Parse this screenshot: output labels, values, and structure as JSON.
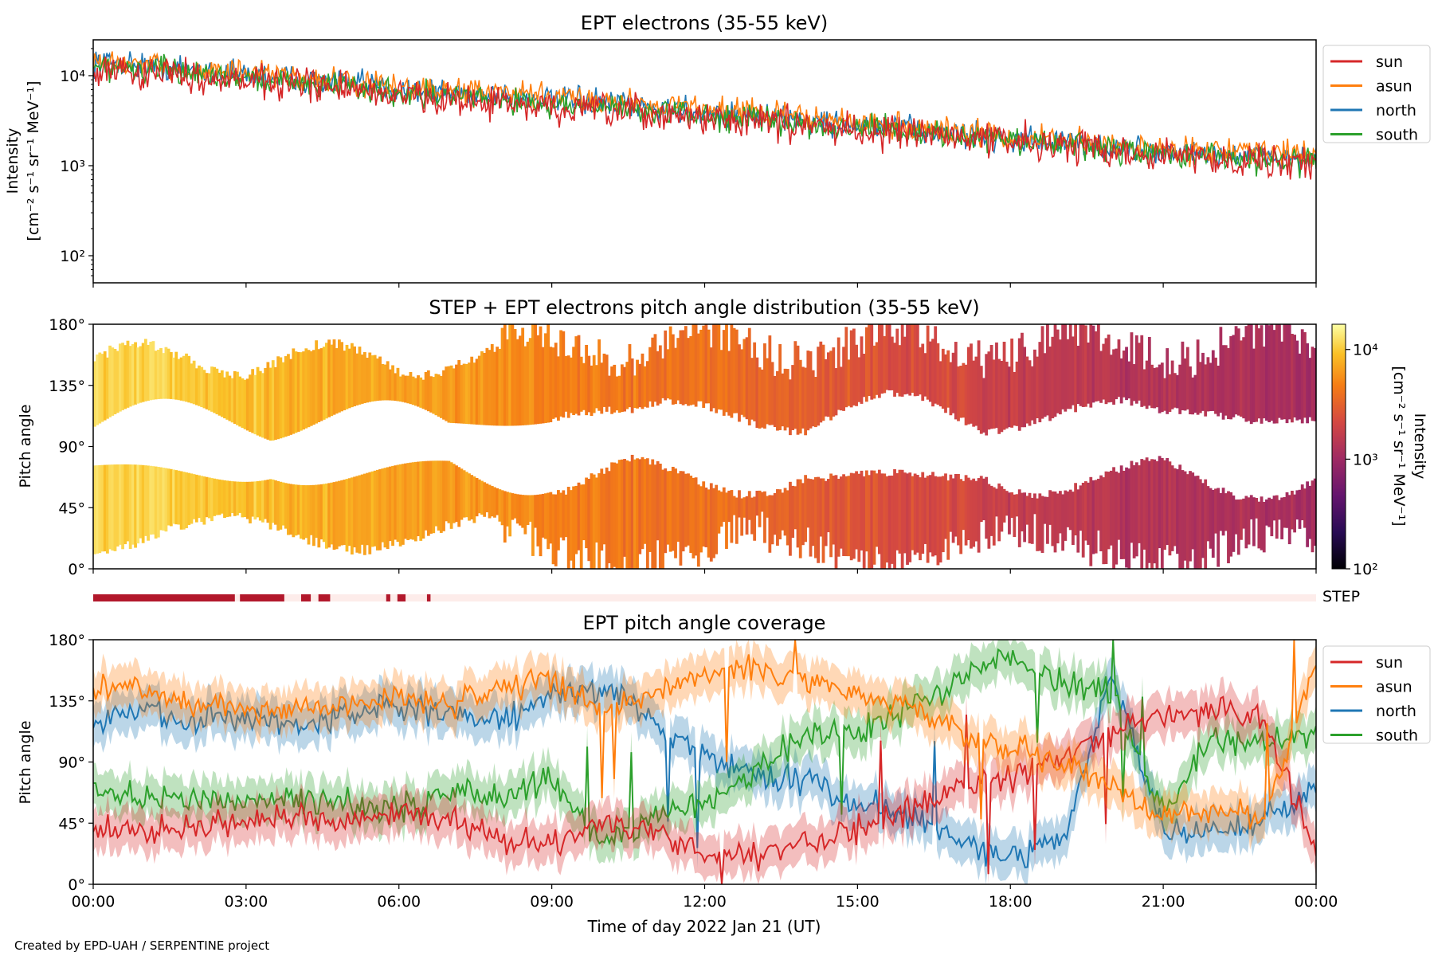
{
  "footer": {
    "credit": "Created by EPD-UAH / SERPENTINE project"
  },
  "colors": {
    "sun": "#d62728",
    "asun": "#ff7f0e",
    "north": "#1f77b4",
    "south": "#2ca02c",
    "step": "#b2182b",
    "step_off": "#fdecea"
  },
  "chart_data": [
    {
      "type": "line",
      "title": "EPT electrons (35-55 keV)",
      "ylabel": [
        "Intensity",
        "[cm⁻² s⁻¹ sr⁻¹ MeV⁻¹]"
      ],
      "yscale": "log",
      "ylim": [
        50,
        25000
      ],
      "yticks": [
        100,
        1000,
        10000
      ],
      "yticklabels": [
        "10²",
        "10³",
        "10⁴"
      ],
      "xlim_hours": [
        0,
        24
      ],
      "legend": {
        "placement": "outside-right",
        "entries": [
          "sun",
          "asun",
          "north",
          "south"
        ]
      },
      "series": [
        {
          "name": "sun",
          "x_hours": [
            0,
            3,
            6,
            9,
            12,
            15,
            18,
            21,
            24
          ],
          "values": [
            12000,
            9000,
            6000,
            4300,
            3400,
            2500,
            1900,
            1300,
            1050
          ]
        },
        {
          "name": "asun",
          "x_hours": [
            0,
            3,
            6,
            9,
            12,
            15,
            18,
            21,
            24
          ],
          "values": [
            14000,
            10500,
            7400,
            5800,
            4400,
            3000,
            2050,
            1550,
            1350
          ]
        },
        {
          "name": "north",
          "x_hours": [
            0,
            3,
            6,
            9,
            12,
            15,
            18,
            21,
            24
          ],
          "values": [
            14500,
            10200,
            7200,
            5400,
            3900,
            2800,
            2000,
            1400,
            1200
          ]
        },
        {
          "name": "south",
          "x_hours": [
            0,
            3,
            6,
            9,
            12,
            15,
            18,
            21,
            24
          ],
          "values": [
            12800,
            9400,
            6500,
            4800,
            3600,
            2600,
            1900,
            1300,
            1100
          ]
        }
      ]
    },
    {
      "type": "heatmap",
      "title": "STEP + EPT electrons pitch angle distribution (35-55 keV)",
      "ylabel": "Pitch angle",
      "ylim": [
        0,
        180
      ],
      "yticklabels": [
        "0°",
        "45°",
        "90°",
        "135°",
        "180°"
      ],
      "xlim_hours": [
        0,
        24
      ],
      "colorbar": {
        "scale": "log",
        "range": [
          100,
          17000
        ],
        "ticklabels": [
          "10²",
          "10³",
          "10⁴"
        ],
        "label": [
          "Intensity",
          "[cm⁻² s⁻¹ sr⁻¹ MeV⁻¹]"
        ],
        "colormap": "inferno"
      },
      "intensity_profile": {
        "x_hours": [
          0,
          3,
          6,
          9,
          12,
          15,
          18,
          21,
          24
        ],
        "values": [
          12000,
          9000,
          6500,
          4800,
          3800,
          2600,
          1800,
          1300,
          1100
        ]
      }
    },
    {
      "type": "bar",
      "label": "STEP",
      "description_free": true,
      "active_intervals_hours": [
        [
          0,
          2.78
        ],
        [
          2.88,
          3.75
        ],
        [
          4.08,
          4.27
        ],
        [
          4.42,
          4.65
        ],
        [
          5.75,
          5.83
        ],
        [
          5.97,
          6.13
        ],
        [
          6.55,
          6.62
        ]
      ]
    },
    {
      "type": "line",
      "title": "EPT pitch angle coverage",
      "ylabel": "Pitch angle",
      "xlabel": "Time of day 2022 Jan 21 (UT)",
      "ylim": [
        0,
        180
      ],
      "yticklabels": [
        "0°",
        "45°",
        "90°",
        "135°",
        "180°"
      ],
      "xlim_hours": [
        0,
        24
      ],
      "xticklabels": [
        "00:00",
        "03:00",
        "06:00",
        "09:00",
        "12:00",
        "15:00",
        "18:00",
        "21:00",
        "00:00"
      ],
      "legend": {
        "placement": "outside-right",
        "entries": [
          "sun",
          "asun",
          "north",
          "south"
        ]
      },
      "band_halfwidth_deg": 15,
      "series": [
        {
          "name": "sun",
          "x_hours": [
            0,
            1,
            2,
            3,
            4,
            5,
            6,
            7,
            8,
            9,
            10,
            11,
            12,
            13,
            14,
            15,
            16,
            17,
            18,
            19,
            20,
            21,
            22,
            23,
            24
          ],
          "values": [
            40,
            38,
            42,
            45,
            48,
            45,
            52,
            48,
            35,
            28,
            48,
            40,
            22,
            20,
            30,
            40,
            55,
            70,
            80,
            95,
            110,
            125,
            130,
            118,
            25
          ]
        },
        {
          "name": "asun",
          "x_hours": [
            0,
            1,
            2,
            3,
            4,
            5,
            6,
            7,
            8,
            9,
            10,
            11,
            12,
            13,
            14,
            15,
            16,
            17,
            18,
            19,
            20,
            21,
            22,
            23,
            24
          ],
          "values": [
            145,
            142,
            133,
            130,
            128,
            132,
            138,
            132,
            145,
            150,
            130,
            140,
            155,
            160,
            150,
            140,
            130,
            110,
            100,
            90,
            70,
            50,
            55,
            50,
            165
          ]
        },
        {
          "name": "north",
          "x_hours": [
            0,
            1,
            2,
            3,
            4,
            5,
            6,
            7,
            8,
            9,
            10,
            11,
            12,
            13,
            14,
            15,
            16,
            17,
            18,
            19,
            20,
            21,
            22,
            23,
            24
          ],
          "values": [
            120,
            128,
            120,
            124,
            118,
            122,
            130,
            125,
            118,
            140,
            145,
            120,
            92,
            80,
            78,
            60,
            50,
            35,
            20,
            30,
            155,
            40,
            38,
            48,
            70
          ]
        },
        {
          "name": "south",
          "x_hours": [
            0,
            1,
            2,
            3,
            4,
            5,
            6,
            7,
            8,
            9,
            10,
            11,
            12,
            13,
            14,
            15,
            16,
            17,
            18,
            19,
            20,
            21,
            22,
            23,
            24
          ],
          "values": [
            70,
            65,
            60,
            60,
            62,
            60,
            55,
            68,
            62,
            80,
            30,
            50,
            60,
            85,
            110,
            110,
            130,
            150,
            170,
            150,
            140,
            50,
            110,
            105,
            110
          ]
        }
      ]
    }
  ]
}
